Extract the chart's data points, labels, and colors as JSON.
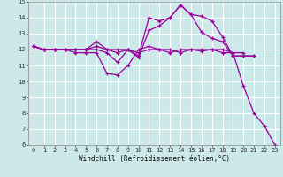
{
  "xlabel": "Windchill (Refroidissement éolien,°C)",
  "bg_color": "#cce8e8",
  "line_color": "#990099",
  "grid_color": "#ffffff",
  "xlim": [
    -0.5,
    23.5
  ],
  "ylim": [
    6,
    15
  ],
  "xticks": [
    0,
    1,
    2,
    3,
    4,
    5,
    6,
    7,
    8,
    9,
    10,
    11,
    12,
    13,
    14,
    15,
    16,
    17,
    18,
    19,
    20,
    21,
    22,
    23
  ],
  "yticks": [
    6,
    7,
    8,
    9,
    10,
    11,
    12,
    13,
    14,
    15
  ],
  "series": [
    {
      "x": [
        0,
        1,
        2,
        3,
        4,
        5,
        6,
        7,
        8,
        9,
        10,
        11,
        12,
        13,
        14,
        15,
        16,
        17,
        18,
        19,
        20,
        21,
        22,
        23
      ],
      "y": [
        12.2,
        12.0,
        12.0,
        12.0,
        11.8,
        11.8,
        11.8,
        10.5,
        10.4,
        11.0,
        12.0,
        12.2,
        12.0,
        11.8,
        12.0,
        12.0,
        11.9,
        12.0,
        11.8,
        11.8,
        9.7,
        8.0,
        7.2,
        6.0
      ]
    },
    {
      "x": [
        0,
        1,
        2,
        3,
        4,
        5,
        6,
        7,
        8,
        9,
        10,
        11,
        12,
        13,
        14,
        15,
        16,
        17,
        18,
        19,
        20,
        21
      ],
      "y": [
        12.2,
        12.0,
        12.0,
        12.0,
        12.0,
        12.0,
        12.0,
        11.8,
        11.2,
        12.0,
        11.6,
        14.0,
        13.8,
        14.0,
        14.8,
        14.2,
        13.1,
        12.7,
        12.5,
        11.6,
        11.6,
        11.6
      ]
    },
    {
      "x": [
        0,
        1,
        2,
        3,
        4,
        5,
        6,
        7,
        8,
        9,
        10,
        11,
        12,
        13,
        14,
        15,
        16,
        17,
        18,
        19,
        20,
        21
      ],
      "y": [
        12.2,
        12.0,
        12.0,
        12.0,
        12.0,
        12.0,
        12.5,
        12.0,
        12.0,
        12.0,
        11.5,
        13.2,
        13.5,
        14.0,
        14.8,
        14.2,
        14.1,
        13.8,
        12.8,
        11.6,
        11.6,
        11.6
      ]
    },
    {
      "x": [
        0,
        1,
        2,
        3,
        4,
        5,
        6,
        7,
        8,
        9,
        10,
        11,
        12,
        13,
        14,
        15,
        16,
        17,
        18,
        19,
        20
      ],
      "y": [
        12.2,
        12.0,
        12.0,
        12.0,
        12.0,
        12.0,
        12.2,
        12.0,
        11.8,
        12.0,
        11.8,
        12.0,
        12.0,
        12.0,
        11.8,
        12.0,
        12.0,
        12.0,
        12.0,
        11.8,
        11.8
      ]
    }
  ],
  "tick_fontsize": 5.0,
  "xlabel_fontsize": 5.5,
  "marker_size": 2.5,
  "linewidth": 0.9
}
